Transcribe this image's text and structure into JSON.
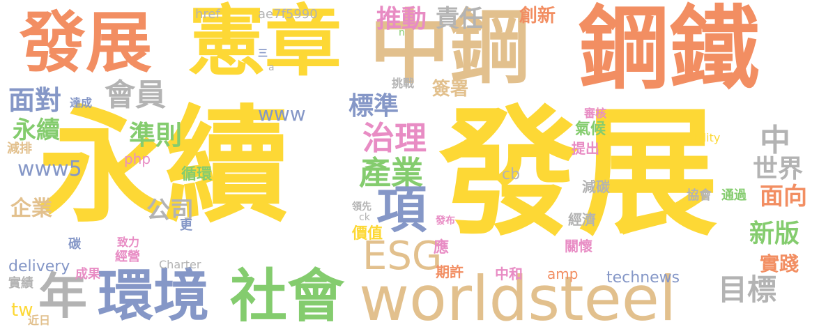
{
  "palette": {
    "yellow": "#fdd835",
    "orange": "#f28e62",
    "tan": "#e2c08d",
    "blue": "#8597c7",
    "green": "#84cc6e",
    "grey": "#b3b3b3",
    "pink": "#e88cc4"
  },
  "words": [
    {
      "text": "永續",
      "color": "yellow"
    },
    {
      "text": "發展",
      "color": "yellow"
    },
    {
      "text": "憲章",
      "color": "yellow"
    },
    {
      "text": "發展",
      "color": "orange"
    },
    {
      "text": "中鋼",
      "color": "tan"
    },
    {
      "text": "鋼鐵",
      "color": "orange"
    },
    {
      "text": "worldsteel",
      "color": "tan"
    },
    {
      "text": "環境",
      "color": "blue"
    },
    {
      "text": "社會",
      "color": "green"
    },
    {
      "text": "年",
      "color": "grey"
    },
    {
      "text": "會員",
      "color": "grey"
    },
    {
      "text": "面對",
      "color": "blue"
    },
    {
      "text": "永續",
      "color": "green"
    },
    {
      "text": "準則",
      "color": "green"
    },
    {
      "text": "治理",
      "color": "pink"
    },
    {
      "text": "產業",
      "color": "green"
    },
    {
      "text": "項",
      "color": "blue"
    },
    {
      "text": "ESG",
      "color": "tan"
    },
    {
      "text": "目標",
      "color": "grey"
    },
    {
      "text": "推動",
      "color": "pink"
    },
    {
      "text": "責任",
      "color": "grey"
    },
    {
      "text": "創新",
      "color": "orange"
    },
    {
      "text": "簽署",
      "color": "tan"
    },
    {
      "text": "標準",
      "color": "blue"
    },
    {
      "text": "www",
      "color": "blue"
    },
    {
      "text": "www5",
      "color": "blue"
    },
    {
      "text": "公司",
      "color": "grey"
    },
    {
      "text": "企業",
      "color": "tan"
    },
    {
      "text": "中",
      "color": "grey"
    },
    {
      "text": "世界",
      "color": "grey"
    },
    {
      "text": "面向",
      "color": "orange"
    },
    {
      "text": "新版",
      "color": "green"
    },
    {
      "text": "實踐",
      "color": "orange"
    },
    {
      "text": "technews",
      "color": "blue"
    },
    {
      "text": "delivery",
      "color": "blue"
    },
    {
      "text": "實績",
      "color": "grey"
    },
    {
      "text": "tw",
      "color": "yellow"
    },
    {
      "text": "ae7f5990",
      "color": "grey"
    },
    {
      "text": "href",
      "color": "grey"
    },
    {
      "text": "php",
      "color": "pink"
    },
    {
      "text": "cb",
      "color": "grey"
    },
    {
      "text": "Sustainability",
      "color": "yellow"
    },
    {
      "text": "氣候",
      "color": "green"
    },
    {
      "text": "提出",
      "color": "pink"
    },
    {
      "text": "減碳",
      "color": "grey"
    },
    {
      "text": "協會",
      "color": "grey"
    },
    {
      "text": "通過",
      "color": "green"
    },
    {
      "text": "經濟",
      "color": "grey"
    },
    {
      "text": "關懷",
      "color": "pink"
    },
    {
      "text": "期許",
      "color": "orange"
    },
    {
      "text": "中和",
      "color": "pink"
    },
    {
      "text": "amp",
      "color": "orange"
    },
    {
      "text": "價值",
      "color": "yellow"
    },
    {
      "text": "應",
      "color": "pink"
    },
    {
      "text": "循環",
      "color": "green"
    },
    {
      "text": "更",
      "color": "blue"
    },
    {
      "text": "碳",
      "color": "blue"
    },
    {
      "text": "致力",
      "color": "pink"
    },
    {
      "text": "經營",
      "color": "pink"
    },
    {
      "text": "成果",
      "color": "pink"
    },
    {
      "text": "Charter",
      "color": "grey"
    },
    {
      "text": "減排",
      "color": "tan"
    },
    {
      "text": "達成",
      "color": "blue"
    },
    {
      "text": "挑戰",
      "color": "grey"
    },
    {
      "text": "領先",
      "color": "grey"
    },
    {
      "text": "ck",
      "color": "grey"
    },
    {
      "text": "近日",
      "color": "tan"
    },
    {
      "text": "審核",
      "color": "pink"
    },
    {
      "text": "三",
      "color": "blue"
    },
    {
      "text": "n",
      "color": "green"
    },
    {
      "text": "發布",
      "color": "pink"
    },
    {
      "text": "a",
      "color": "grey"
    }
  ]
}
